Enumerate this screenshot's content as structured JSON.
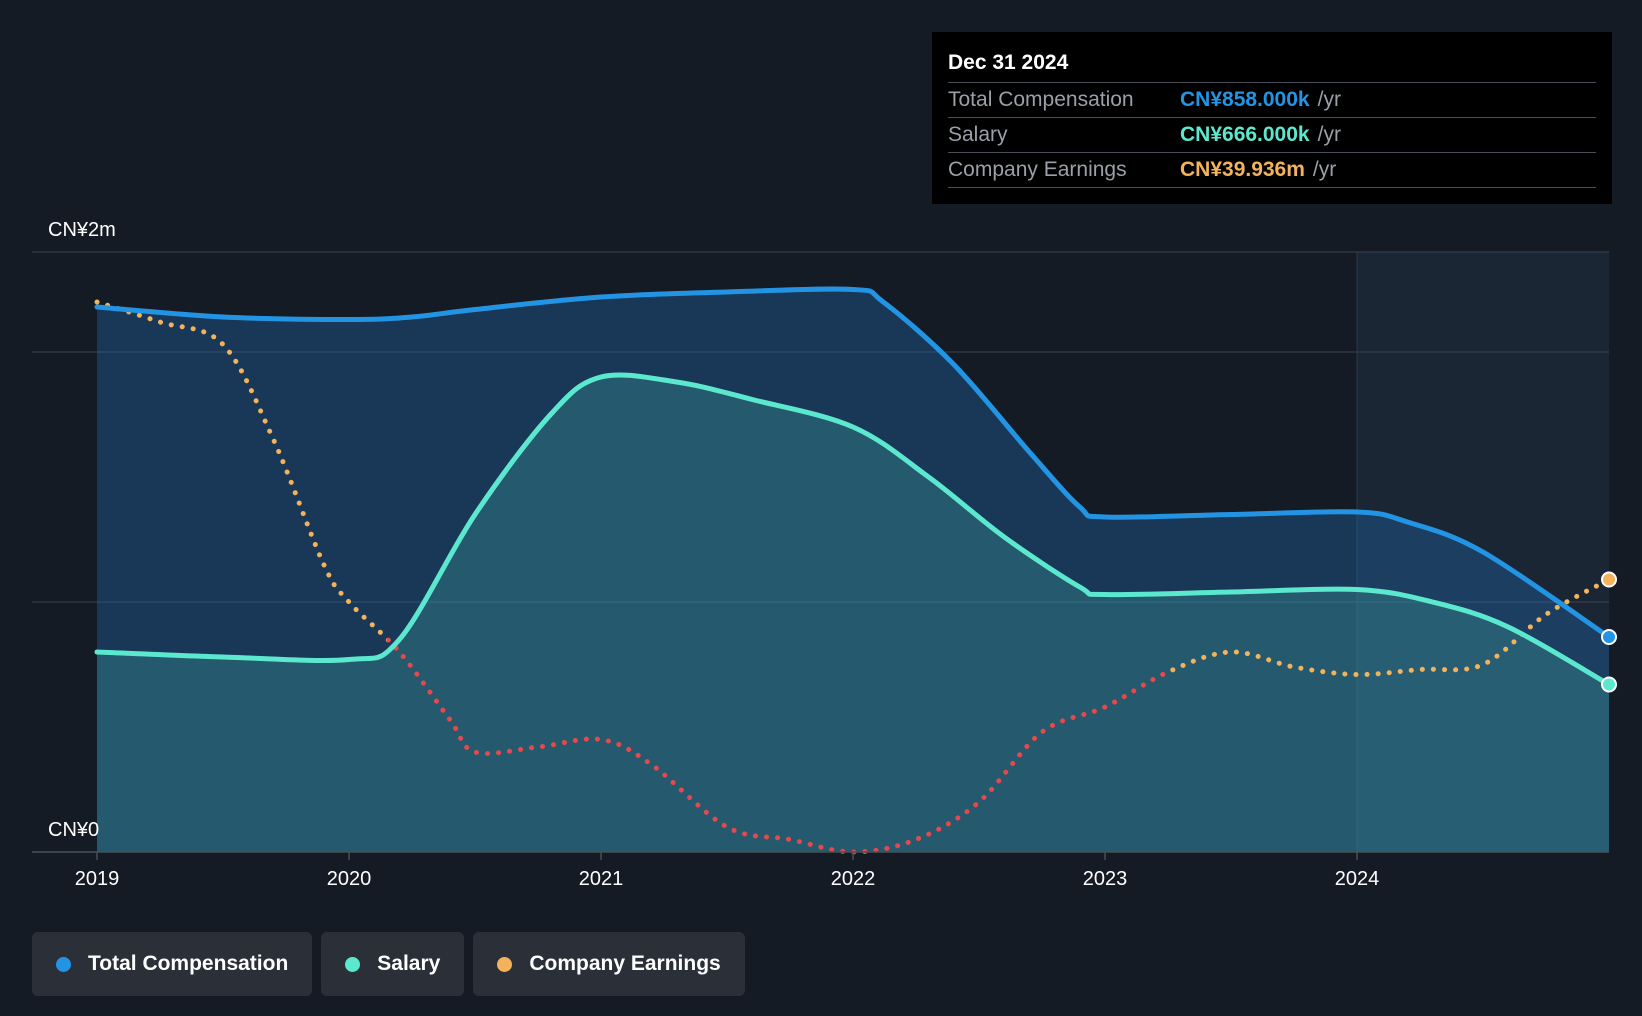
{
  "tooltip": {
    "date": "Dec 31 2024",
    "rows": [
      {
        "label": "Total Compensation",
        "value": "CN¥858.000k",
        "unit": "/yr",
        "color": "#2394e3"
      },
      {
        "label": "Salary",
        "value": "CN¥666.000k",
        "unit": "/yr",
        "color": "#5be8cf"
      },
      {
        "label": "Company Earnings",
        "value": "CN¥39.936m",
        "unit": "/yr",
        "color": "#f2b35c"
      }
    ]
  },
  "legend": [
    {
      "label": "Total Compensation",
      "color": "#2394e3"
    },
    {
      "label": "Salary",
      "color": "#5be8cf"
    },
    {
      "label": "Company Earnings",
      "color": "#f2b35c"
    }
  ],
  "chart_data": {
    "type": "area",
    "y_top_label": "CN¥2m",
    "y_bottom_label": "CN¥0",
    "ylim": [
      0,
      2.4
    ],
    "xlim": [
      2019.0,
      2025.0
    ],
    "xticks": [
      2019,
      2020,
      2021,
      2022,
      2023,
      2024
    ],
    "xtick_labels": [
      "2019",
      "2020",
      "2021",
      "2022",
      "2023",
      "2024"
    ],
    "highlight_start": 2024.0,
    "colors": {
      "total": "#2394e3",
      "salary": "#5be8cf",
      "earnings": "#f2b35c",
      "earnings_negative": "#e5484d"
    },
    "series": [
      {
        "name": "Total Compensation",
        "unit": "CN¥m",
        "points": [
          [
            2019.0,
            2.18
          ],
          [
            2019.5,
            2.14
          ],
          [
            2020.0,
            2.13
          ],
          [
            2020.25,
            2.14
          ],
          [
            2020.5,
            2.17
          ],
          [
            2021.0,
            2.22
          ],
          [
            2021.5,
            2.24
          ],
          [
            2022.0,
            2.25
          ],
          [
            2022.12,
            2.2
          ],
          [
            2022.4,
            1.95
          ],
          [
            2022.7,
            1.6
          ],
          [
            2022.9,
            1.38
          ],
          [
            2023.0,
            1.34
          ],
          [
            2023.5,
            1.35
          ],
          [
            2024.0,
            1.36
          ],
          [
            2024.2,
            1.32
          ],
          [
            2024.5,
            1.2
          ],
          [
            2025.0,
            0.86
          ]
        ]
      },
      {
        "name": "Salary",
        "unit": "CN¥m",
        "points": [
          [
            2019.0,
            0.8
          ],
          [
            2019.5,
            0.78
          ],
          [
            2020.0,
            0.77
          ],
          [
            2020.2,
            0.85
          ],
          [
            2020.5,
            1.35
          ],
          [
            2020.8,
            1.75
          ],
          [
            2021.0,
            1.9
          ],
          [
            2021.3,
            1.88
          ],
          [
            2021.6,
            1.81
          ],
          [
            2022.0,
            1.7
          ],
          [
            2022.3,
            1.5
          ],
          [
            2022.6,
            1.26
          ],
          [
            2022.9,
            1.06
          ],
          [
            2023.0,
            1.03
          ],
          [
            2023.5,
            1.04
          ],
          [
            2024.0,
            1.05
          ],
          [
            2024.3,
            1.0
          ],
          [
            2024.6,
            0.9
          ],
          [
            2025.0,
            0.67
          ]
        ]
      },
      {
        "name": "Company Earnings",
        "unit": "CN¥m (scaled axis)",
        "points": [
          [
            2019.0,
            2.2
          ],
          [
            2019.25,
            2.12
          ],
          [
            2019.5,
            2.03
          ],
          [
            2019.7,
            1.65
          ],
          [
            2019.9,
            1.15
          ],
          [
            2020.0,
            1.0
          ],
          [
            2020.2,
            0.8
          ],
          [
            2020.4,
            0.53
          ],
          [
            2020.5,
            0.4
          ],
          [
            2020.75,
            0.42
          ],
          [
            2021.0,
            0.45
          ],
          [
            2021.2,
            0.35
          ],
          [
            2021.5,
            0.1
          ],
          [
            2021.75,
            0.05
          ],
          [
            2022.0,
            0.0
          ],
          [
            2022.25,
            0.05
          ],
          [
            2022.5,
            0.2
          ],
          [
            2022.75,
            0.48
          ],
          [
            2023.0,
            0.58
          ],
          [
            2023.25,
            0.72
          ],
          [
            2023.5,
            0.8
          ],
          [
            2023.75,
            0.74
          ],
          [
            2024.0,
            0.71
          ],
          [
            2024.25,
            0.73
          ],
          [
            2024.5,
            0.75
          ],
          [
            2024.75,
            0.95
          ],
          [
            2025.0,
            1.09
          ]
        ],
        "negative_range": [
          2020.15,
          2023.25
        ]
      }
    ]
  }
}
